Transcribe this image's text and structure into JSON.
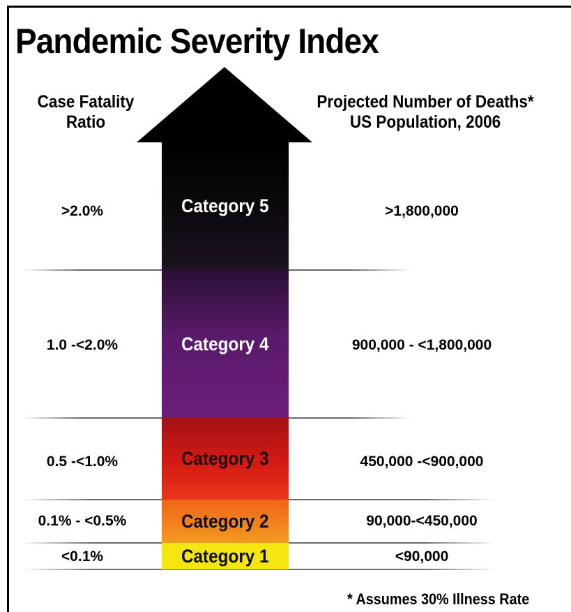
{
  "title": "Pandemic Severity Index",
  "left_header": [
    "Case Fatality",
    "Ratio"
  ],
  "right_header": [
    "Projected Number of Deaths*",
    "US Population, 2006"
  ],
  "categories": [
    {
      "label": "Category 5",
      "cfr": ">2.0%",
      "deaths": ">1,800,000",
      "color": "#0e0a10"
    },
    {
      "label": "Category 4",
      "cfr": "1.0 -<2.0%",
      "deaths": "900,000 - <1,800,000",
      "color": "#5a1a6b"
    },
    {
      "label": "Category 3",
      "cfr": "0.5 -<1.0%",
      "deaths": "450,000 -<900,000",
      "color": "#d41a14"
    },
    {
      "label": "Category 2",
      "cfr": "0.1% - <0.5%",
      "deaths": "90,000-<450,000",
      "color": "#f39a20"
    },
    {
      "label": "Category 1",
      "cfr": "<0.1%",
      "deaths": "<90,000",
      "color": "#f5e60f"
    }
  ],
  "footnote": "* Assumes 30% Illness Rate"
}
